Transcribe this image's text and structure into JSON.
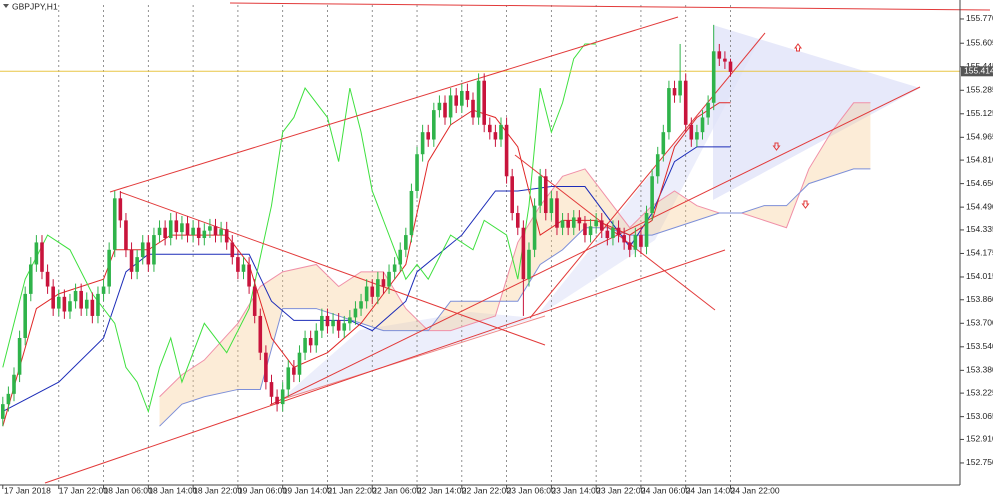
{
  "chart_data": {
    "type": "candlestick",
    "title": "GBPJPY,H1",
    "bull_color": "#2fb34a",
    "bear_color": "#c8143c",
    "xlim": [
      -0.5,
      171
    ],
    "ylim": [
      152.6,
      155.865
    ],
    "xticks": [
      {
        "value": 0,
        "label": "17 Jan 2018"
      },
      {
        "value": 10,
        "label": "17 Jan 22:00"
      },
      {
        "value": 18,
        "label": "18 Jan 06:00"
      },
      {
        "value": 26,
        "label": "18 Jan 14:00"
      },
      {
        "value": 34,
        "label": "18 Jan 22:00"
      },
      {
        "value": 42,
        "label": "19 Jan 06:00"
      },
      {
        "value": 50,
        "label": "19 Jan 14:00"
      },
      {
        "value": 58,
        "label": "21 Jan 22:00"
      },
      {
        "value": 66,
        "label": "22 Jan 06:00"
      },
      {
        "value": 74,
        "label": "22 Jan 14:00"
      },
      {
        "value": 82,
        "label": "22 Jan 22:00"
      },
      {
        "value": 90,
        "label": "23 Jan 06:00"
      },
      {
        "value": 98,
        "label": "23 Jan 14:00"
      },
      {
        "value": 106,
        "label": "23 Jan 22:00"
      },
      {
        "value": 114,
        "label": "24 Jan 06:00"
      },
      {
        "value": 122,
        "label": "24 Jan 14:00"
      },
      {
        "value": 130,
        "label": "24 Jan 22:00"
      }
    ],
    "yticks": [
      {
        "value": 155.77,
        "label": "155.770"
      },
      {
        "value": 155.605,
        "label": "155.605"
      },
      {
        "value": 155.445,
        "label": "155.445"
      },
      {
        "value": 155.285,
        "label": "155.285"
      },
      {
        "value": 155.125,
        "label": "155.125"
      },
      {
        "value": 154.965,
        "label": "154.965"
      },
      {
        "value": 154.81,
        "label": "154.810"
      },
      {
        "value": 154.65,
        "label": "154.650"
      },
      {
        "value": 154.49,
        "label": "154.490"
      },
      {
        "value": 154.335,
        "label": "154.335"
      },
      {
        "value": 154.175,
        "label": "154.175"
      },
      {
        "value": 154.015,
        "label": "154.015"
      },
      {
        "value": 153.86,
        "label": "153.860"
      },
      {
        "value": 153.7,
        "label": "153.700"
      },
      {
        "value": 153.54,
        "label": "153.540"
      },
      {
        "value": 153.38,
        "label": "153.380"
      },
      {
        "value": 153.225,
        "label": "153.225"
      },
      {
        "value": 153.065,
        "label": "153.065"
      },
      {
        "value": 152.91,
        "label": "152.910"
      },
      {
        "value": 152.75,
        "label": "152.750"
      }
    ],
    "current_price": 155.414,
    "current_price_color": "#e8c547",
    "open": [
      153.05,
      153.15,
      153.22,
      153.35,
      153.6,
      153.9,
      154.1,
      154.25,
      154.05,
      153.95,
      153.8,
      153.88,
      153.78,
      153.85,
      153.92,
      153.8,
      153.86,
      153.75,
      153.9,
      153.95,
      154.2,
      154.55,
      154.4,
      154.2,
      154.05,
      154.15,
      154.25,
      154.1,
      154.3,
      154.35,
      154.28,
      154.4,
      154.32,
      154.38,
      154.3,
      154.35,
      154.28,
      154.33,
      154.36,
      154.3,
      154.34,
      154.25,
      154.15,
      154.05,
      154.1,
      153.95,
      153.75,
      153.5,
      153.3,
      153.2,
      153.15,
      153.25,
      153.4,
      153.35,
      153.5,
      153.6,
      153.55,
      153.65,
      153.75,
      153.68,
      153.72,
      153.65,
      153.7,
      153.74,
      153.8,
      153.85,
      153.95,
      153.88,
      154.0,
      153.95,
      154.05,
      154.1,
      154.2,
      154.3,
      154.6,
      154.85,
      155.0,
      154.95,
      155.15,
      155.2,
      155.1,
      155.25,
      155.18,
      155.28,
      155.22,
      155.1,
      155.35,
      155.05,
      155.0,
      154.95,
      155.05,
      154.7,
      154.45,
      154.35,
      154.0,
      154.2,
      154.5,
      154.7,
      154.45,
      154.55,
      154.35,
      154.4,
      154.35,
      154.42,
      154.38,
      154.3,
      154.36,
      154.4,
      154.33,
      154.28,
      154.35,
      154.3,
      154.25,
      154.2,
      154.3,
      154.22,
      154.45,
      154.7,
      154.85,
      155.0,
      155.3,
      155.25,
      155.35,
      155.05,
      154.95,
      155.0,
      155.1,
      155.2,
      155.55,
      155.5,
      155.48
    ],
    "high": [
      153.2,
      153.27,
      153.4,
      153.65,
      153.95,
      154.15,
      154.3,
      154.3,
      154.1,
      154.0,
      153.93,
      153.93,
      153.9,
      153.97,
      153.97,
      153.91,
      153.91,
      153.95,
      154.0,
      154.25,
      154.6,
      154.6,
      154.45,
      154.25,
      154.2,
      154.3,
      154.3,
      154.35,
      154.4,
      154.4,
      154.45,
      154.45,
      154.43,
      154.43,
      154.4,
      154.4,
      154.38,
      154.41,
      154.41,
      154.39,
      154.39,
      154.3,
      154.2,
      154.15,
      154.15,
      154.0,
      153.8,
      153.55,
      153.35,
      153.25,
      153.3,
      153.45,
      153.45,
      153.55,
      153.65,
      153.65,
      153.7,
      153.8,
      153.8,
      153.77,
      153.77,
      153.75,
      153.79,
      153.85,
      153.9,
      154.0,
      154.0,
      154.05,
      154.05,
      154.1,
      154.15,
      154.25,
      154.35,
      154.65,
      154.9,
      155.05,
      155.05,
      155.2,
      155.25,
      155.25,
      155.3,
      155.3,
      155.33,
      155.33,
      155.27,
      155.4,
      155.4,
      155.1,
      155.05,
      155.1,
      155.1,
      154.75,
      154.5,
      154.4,
      154.25,
      154.55,
      154.75,
      154.75,
      154.6,
      154.6,
      154.45,
      154.45,
      154.47,
      154.47,
      154.43,
      154.41,
      154.45,
      154.45,
      154.38,
      154.4,
      154.4,
      154.35,
      154.3,
      154.35,
      154.35,
      154.5,
      154.75,
      154.9,
      155.05,
      155.35,
      155.35,
      155.6,
      155.4,
      155.1,
      155.05,
      155.15,
      155.25,
      155.73,
      155.6,
      155.55,
      155.5
    ],
    "low": [
      153.0,
      153.1,
      153.17,
      153.3,
      153.55,
      153.85,
      154.05,
      154.0,
      153.9,
      153.75,
      153.75,
      153.73,
      153.73,
      153.8,
      153.75,
      153.75,
      153.7,
      153.7,
      153.85,
      153.9,
      154.15,
      154.35,
      154.15,
      154.0,
      154.0,
      154.1,
      154.05,
      154.05,
      154.25,
      154.23,
      154.23,
      154.27,
      154.27,
      154.25,
      154.25,
      154.23,
      154.23,
      154.28,
      154.25,
      154.25,
      154.2,
      154.1,
      154.0,
      154.0,
      153.9,
      153.7,
      153.45,
      153.25,
      153.15,
      153.1,
      153.1,
      153.2,
      153.3,
      153.3,
      153.45,
      153.5,
      153.5,
      153.6,
      153.63,
      153.63,
      153.6,
      153.6,
      153.65,
      153.69,
      153.75,
      153.8,
      153.83,
      153.83,
      153.9,
      153.9,
      154.0,
      154.05,
      154.15,
      154.25,
      154.55,
      154.8,
      154.9,
      154.9,
      155.1,
      155.05,
      155.05,
      155.13,
      155.13,
      155.17,
      155.05,
      155.05,
      155.0,
      154.95,
      154.9,
      154.9,
      154.65,
      154.4,
      154.3,
      153.75,
      153.95,
      154.15,
      154.45,
      154.4,
      154.4,
      154.3,
      154.3,
      154.3,
      154.3,
      154.33,
      154.25,
      154.25,
      154.31,
      154.28,
      154.23,
      154.23,
      154.25,
      154.2,
      154.15,
      154.15,
      154.17,
      154.17,
      154.4,
      154.65,
      154.8,
      154.95,
      155.2,
      155.2,
      155.0,
      154.9,
      154.9,
      154.95,
      155.05,
      155.15,
      155.45,
      155.43,
      155.38
    ],
    "close": [
      153.15,
      153.22,
      153.35,
      153.6,
      153.9,
      154.1,
      154.25,
      154.05,
      153.95,
      153.8,
      153.88,
      153.78,
      153.85,
      153.92,
      153.8,
      153.86,
      153.75,
      153.9,
      153.95,
      154.2,
      154.55,
      154.4,
      154.2,
      154.05,
      154.15,
      154.25,
      154.1,
      154.3,
      154.35,
      154.28,
      154.4,
      154.32,
      154.38,
      154.3,
      154.35,
      154.28,
      154.33,
      154.36,
      154.3,
      154.34,
      154.25,
      154.15,
      154.05,
      154.1,
      153.95,
      153.75,
      153.5,
      153.3,
      153.2,
      153.15,
      153.25,
      153.4,
      153.35,
      153.5,
      153.6,
      153.55,
      153.65,
      153.75,
      153.68,
      153.72,
      153.65,
      153.7,
      153.74,
      153.8,
      153.85,
      153.95,
      153.88,
      154.0,
      153.95,
      154.05,
      154.1,
      154.2,
      154.3,
      154.6,
      154.85,
      155.0,
      154.95,
      155.15,
      155.2,
      155.1,
      155.25,
      155.18,
      155.28,
      155.22,
      155.1,
      155.35,
      155.05,
      155.0,
      154.95,
      155.05,
      154.7,
      154.45,
      154.35,
      154.0,
      154.2,
      154.5,
      154.7,
      154.45,
      154.55,
      154.35,
      154.4,
      154.35,
      154.42,
      154.38,
      154.3,
      154.36,
      154.4,
      154.33,
      154.28,
      154.35,
      154.3,
      154.25,
      154.2,
      154.3,
      154.22,
      154.45,
      154.7,
      154.85,
      155.0,
      155.3,
      155.25,
      155.35,
      155.05,
      154.95,
      155.0,
      155.1,
      155.2,
      155.55,
      155.5,
      155.48,
      155.41
    ],
    "lines": [
      {
        "color": "#1c2cb8",
        "x": [
          0,
          10,
          18,
          22,
          26,
          44,
          48,
          52,
          62,
          66,
          72,
          74,
          82,
          88,
          92,
          98,
          104,
          112,
          116,
          120,
          124,
          130
        ],
        "values": [
          153.1,
          153.3,
          153.6,
          154.05,
          154.17,
          154.17,
          153.85,
          153.72,
          153.72,
          153.65,
          153.85,
          154.05,
          154.3,
          154.6,
          154.6,
          154.63,
          154.63,
          154.22,
          154.45,
          154.8,
          154.9,
          154.9
        ]
      },
      {
        "color": "#e02828",
        "x": [
          0,
          6,
          10,
          18,
          20,
          26,
          30,
          40,
          44,
          48,
          52,
          58,
          64,
          68,
          72,
          76,
          80,
          84,
          88,
          92,
          96,
          100,
          106,
          112,
          116,
          120,
          124,
          128,
          130
        ],
        "values": [
          153.0,
          153.8,
          153.9,
          154.0,
          154.2,
          154.2,
          154.3,
          154.3,
          154.1,
          153.6,
          153.4,
          153.5,
          153.7,
          153.9,
          154.1,
          154.8,
          155.05,
          155.15,
          155.1,
          154.9,
          154.3,
          154.4,
          154.4,
          154.3,
          154.4,
          154.9,
          155.1,
          155.2,
          155.2
        ]
      },
      {
        "color": "#3ee03e",
        "x": [
          0,
          4,
          8,
          12,
          16,
          20,
          22,
          24,
          26,
          28,
          30,
          32,
          36,
          40,
          44,
          48,
          50,
          52,
          54,
          56,
          58,
          60,
          62,
          64,
          66,
          68,
          70,
          72,
          74,
          76,
          80,
          84,
          86,
          90,
          92,
          94,
          96,
          98,
          100,
          102,
          104,
          106
        ],
        "values": [
          153.4,
          154.0,
          154.3,
          154.2,
          153.9,
          153.7,
          153.4,
          153.3,
          153.1,
          153.4,
          153.6,
          153.3,
          153.7,
          153.5,
          153.8,
          154.5,
          155.0,
          155.1,
          155.3,
          155.2,
          155.1,
          154.8,
          155.3,
          155.0,
          154.6,
          154.4,
          154.2,
          154.0,
          154.1,
          154.0,
          154.3,
          154.2,
          154.4,
          154.3,
          154.0,
          154.5,
          155.3,
          155.0,
          155.2,
          155.5,
          155.6,
          155.6
        ]
      }
    ],
    "cloud": {
      "color_a": "#f090a8",
      "color_b": "#7d8fd8",
      "fill": "#f7c98c",
      "x": [
        28,
        32,
        36,
        42,
        46,
        50,
        56,
        60,
        64,
        68,
        72,
        76,
        80,
        84,
        88,
        92,
        96,
        100,
        104,
        108,
        112,
        116,
        120,
        124,
        128,
        132,
        136,
        140,
        144,
        148,
        152,
        155
      ],
      "span_a": [
        153.2,
        153.35,
        153.45,
        153.7,
        153.95,
        154.05,
        154.1,
        153.95,
        154.05,
        154.05,
        153.8,
        153.65,
        153.65,
        153.7,
        153.75,
        154.25,
        154.5,
        154.7,
        154.75,
        154.55,
        154.35,
        154.5,
        154.6,
        154.5,
        154.45,
        154.45,
        154.4,
        154.35,
        154.75,
        155.0,
        155.2,
        155.2
      ],
      "span_b": [
        153.0,
        153.15,
        153.2,
        153.25,
        153.25,
        153.8,
        153.8,
        153.75,
        153.7,
        153.65,
        153.65,
        153.65,
        153.85,
        153.85,
        153.85,
        153.85,
        154.1,
        154.2,
        154.35,
        154.35,
        154.3,
        154.3,
        154.35,
        154.4,
        154.45,
        154.45,
        154.5,
        154.5,
        154.65,
        154.7,
        154.75,
        154.75
      ]
    }
  }
}
